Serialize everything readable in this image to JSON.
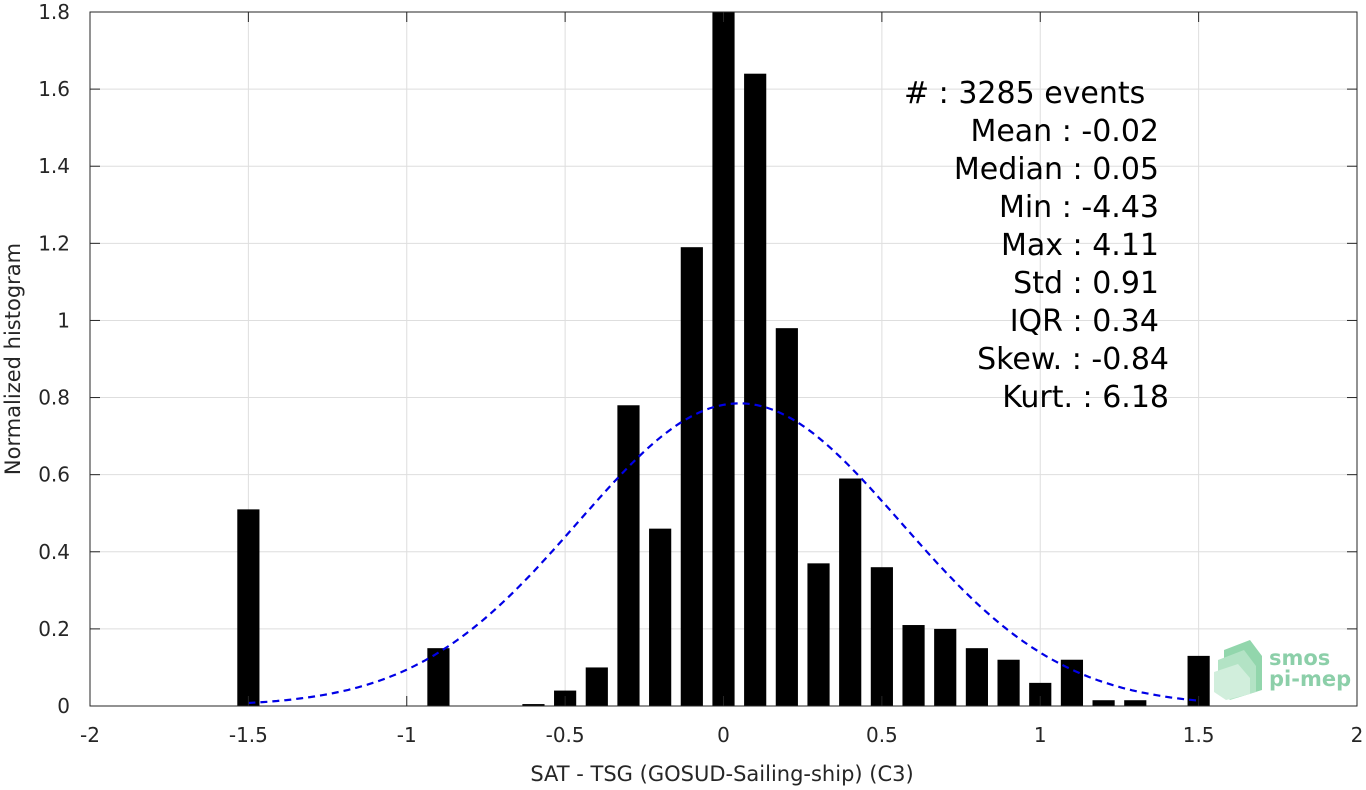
{
  "chart_data": {
    "type": "bar",
    "xlabel": "SAT - TSG (GOSUD-Sailing-ship) (C3)",
    "ylabel": "Normalized histogram",
    "xlim": [
      -2,
      2
    ],
    "ylim": [
      0,
      1.8
    ],
    "grid": true,
    "x_ticks": [
      {
        "value": -2,
        "label": "-2"
      },
      {
        "value": -1.5,
        "label": "-1.5"
      },
      {
        "value": -1,
        "label": "-1"
      },
      {
        "value": -0.5,
        "label": "-0.5"
      },
      {
        "value": 0,
        "label": "0"
      },
      {
        "value": 0.5,
        "label": "0.5"
      },
      {
        "value": 1,
        "label": "1"
      },
      {
        "value": 1.5,
        "label": "1.5"
      },
      {
        "value": 2,
        "label": "2"
      }
    ],
    "y_ticks": [
      {
        "value": 0,
        "label": "0"
      },
      {
        "value": 0.2,
        "label": "0.2"
      },
      {
        "value": 0.4,
        "label": "0.4"
      },
      {
        "value": 0.6,
        "label": "0.6"
      },
      {
        "value": 0.8,
        "label": "0.8"
      },
      {
        "value": 1,
        "label": "1"
      },
      {
        "value": 1.2,
        "label": "1.2"
      },
      {
        "value": 1.4,
        "label": "1.4"
      },
      {
        "value": 1.6,
        "label": "1.6"
      },
      {
        "value": 1.8,
        "label": "1.8"
      }
    ],
    "bar_width": 0.07,
    "bars": [
      {
        "x": -1.5,
        "y": 0.51
      },
      {
        "x": -0.9,
        "y": 0.15
      },
      {
        "x": -0.6,
        "y": 0.005
      },
      {
        "x": -0.5,
        "y": 0.04
      },
      {
        "x": -0.4,
        "y": 0.1
      },
      {
        "x": -0.3,
        "y": 0.78
      },
      {
        "x": -0.2,
        "y": 0.46
      },
      {
        "x": -0.1,
        "y": 1.19
      },
      {
        "x": 0.0,
        "y": 1.8
      },
      {
        "x": 0.1,
        "y": 1.64
      },
      {
        "x": 0.2,
        "y": 0.98
      },
      {
        "x": 0.3,
        "y": 0.37
      },
      {
        "x": 0.4,
        "y": 0.59
      },
      {
        "x": 0.5,
        "y": 0.36
      },
      {
        "x": 0.6,
        "y": 0.21
      },
      {
        "x": 0.7,
        "y": 0.2
      },
      {
        "x": 0.8,
        "y": 0.15
      },
      {
        "x": 0.9,
        "y": 0.12
      },
      {
        "x": 1.0,
        "y": 0.06
      },
      {
        "x": 1.1,
        "y": 0.12
      },
      {
        "x": 1.2,
        "y": 0.015
      },
      {
        "x": 1.3,
        "y": 0.015
      },
      {
        "x": 1.5,
        "y": 0.13
      }
    ],
    "bar_color": "#000000",
    "fit_curve": {
      "type": "gaussian",
      "mean": 0.05,
      "std": 0.51,
      "peak": 0.785,
      "x_range": [
        -1.5,
        1.5
      ],
      "color": "#0000e6",
      "style": "dashed"
    },
    "stats": [
      "#  : 3285 events",
      "Mean : -0.02",
      "Median : 0.05",
      "Min : -4.43",
      "Max : 4.11",
      "Std : 0.91",
      "IQR : 0.34",
      "Skew. : -0.84",
      "Kurt. : 6.18"
    ]
  },
  "logo": {
    "line1": "smos",
    "line2": "pi-mep",
    "color": "#79c79b"
  }
}
